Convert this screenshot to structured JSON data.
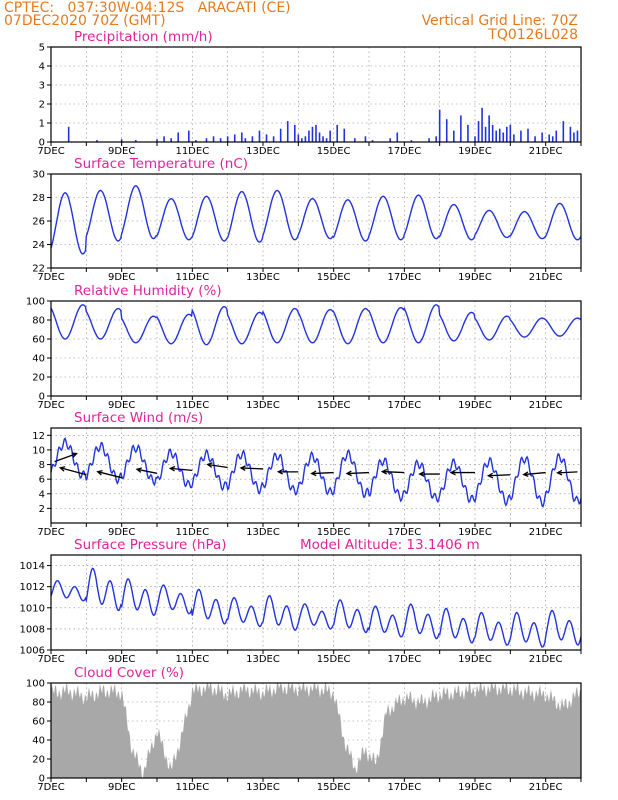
{
  "header": {
    "line1_left": "CPTEC:   037:30W-04:12S   ARACATI (CE)",
    "line2_left": "07DEC2020 70Z (GMT)",
    "line1_right": "Vertical Grid Line: 70Z",
    "line2_right": "TQ0126L028"
  },
  "x_labels": [
    "7DEC",
    "9DEC",
    "11DEC",
    "13DEC",
    "15DEC",
    "17DEC",
    "19DEC",
    "21DEC"
  ],
  "colors": {
    "title": "#e0249a",
    "header": "#e87a1e",
    "line": "#2233dd",
    "bars": "#2233dd",
    "cloud": "#a8a8a8"
  },
  "chart_data": [
    {
      "type": "bar",
      "title": "Precipitation (mm/h)",
      "ylim": [
        0,
        5
      ],
      "yticks": [
        0,
        1,
        2,
        3,
        4,
        5
      ],
      "xlim_days": [
        0,
        15
      ],
      "series": [
        {
          "x": [
            0.5,
            1.3,
            2.0,
            2.4,
            3.0,
            3.2,
            3.4,
            3.6,
            3.9,
            4.1,
            4.4,
            4.6,
            4.8,
            5.0,
            5.2,
            5.4,
            5.5,
            5.7,
            5.9,
            6.1,
            6.3,
            6.5,
            6.7,
            6.9,
            7.0,
            7.1,
            7.2,
            7.3,
            7.4,
            7.5,
            7.6,
            7.7,
            7.8,
            7.9,
            8.1,
            8.3,
            8.6,
            8.9,
            9.1,
            9.6,
            9.8,
            10.2,
            10.7,
            10.9,
            11.0,
            11.2,
            11.4,
            11.6,
            11.8,
            12.0,
            12.1,
            12.2,
            12.3,
            12.4,
            12.5,
            12.6,
            12.7,
            12.8,
            12.9,
            13.0,
            13.1,
            13.3,
            13.5,
            13.7,
            13.9,
            14.1,
            14.2,
            14.3,
            14.5,
            14.7,
            14.8,
            14.9
          ],
          "values": [
            0.8,
            0.1,
            0.15,
            0.1,
            0.15,
            0.3,
            0.2,
            0.5,
            0.6,
            0.1,
            0.2,
            0.3,
            0.2,
            0.3,
            0.4,
            0.5,
            0.2,
            0.3,
            0.6,
            0.4,
            0.3,
            0.7,
            1.1,
            0.9,
            0.4,
            0.2,
            0.3,
            0.6,
            0.8,
            0.9,
            0.5,
            0.3,
            0.2,
            0.6,
            0.9,
            0.7,
            0.2,
            0.3,
            0.1,
            0.2,
            0.5,
            0.1,
            0.2,
            0.3,
            1.7,
            1.2,
            0.6,
            1.4,
            0.9,
            0.3,
            1.1,
            1.8,
            0.8,
            1.4,
            0.9,
            0.6,
            0.7,
            0.5,
            0.8,
            0.9,
            0.4,
            0.6,
            0.7,
            0.3,
            0.5,
            0.4,
            0.3,
            0.6,
            1.1,
            0.8,
            0.5,
            0.6
          ]
        }
      ]
    },
    {
      "type": "line",
      "title": "Surface Temperature (nC)",
      "ylim": [
        22,
        30
      ],
      "yticks": [
        22,
        24,
        26,
        28,
        30
      ],
      "series": [
        {
          "min": [
            23.2,
            24.3,
            24.5,
            24.4,
            24.3,
            24.2,
            24.4,
            24.5,
            24.3,
            24.4,
            24.5,
            24.4,
            24.6,
            24.5,
            24.4
          ],
          "max": [
            28.4,
            28.6,
            29.0,
            27.9,
            28.1,
            28.5,
            28.6,
            27.9,
            27.8,
            28.1,
            28.2,
            27.4,
            26.9,
            26.8,
            27.5
          ]
        }
      ]
    },
    {
      "type": "line",
      "title": "Relative Humidity (%)",
      "ylim": [
        0,
        100
      ],
      "yticks": [
        0,
        20,
        40,
        60,
        80,
        100
      ],
      "series": [
        {
          "min": [
            60,
            60,
            56,
            55,
            54,
            55,
            56,
            56,
            55,
            56,
            56,
            58,
            59,
            62,
            63
          ],
          "max": [
            96,
            92,
            84,
            86,
            94,
            88,
            92,
            91,
            92,
            93,
            96,
            88,
            84,
            82,
            82
          ]
        }
      ]
    },
    {
      "type": "line",
      "title": "Surface Wind (m/s)",
      "ylim": [
        0,
        13
      ],
      "yticks": [
        2,
        4,
        6,
        8,
        10,
        12
      ],
      "series": [
        {
          "min": [
            6.5,
            6.0,
            5.8,
            5.2,
            5.0,
            4.6,
            4.4,
            4.2,
            4.0,
            3.6,
            3.4,
            3.2,
            3.0,
            2.8,
            3.0
          ],
          "max": [
            11.0,
            10.5,
            10.3,
            9.6,
            9.4,
            9.4,
            9.2,
            9.1,
            9.4,
            8.5,
            8.1,
            8.2,
            8.4,
            8.8,
            9.0
          ]
        }
      ],
      "vectors": [
        {
          "x": 0.1,
          "y": 8.4,
          "dx": 22,
          "dy": -8
        },
        {
          "x": 1.0,
          "y": 6.6,
          "dx": -26,
          "dy": -7
        },
        {
          "x": 2.0,
          "y": 6.2,
          "dx": -24,
          "dy": -6
        },
        {
          "x": 3.0,
          "y": 6.8,
          "dx": -20,
          "dy": -4
        },
        {
          "x": 4.0,
          "y": 7.2,
          "dx": -22,
          "dy": -2
        },
        {
          "x": 5.0,
          "y": 7.6,
          "dx": -20,
          "dy": -3
        },
        {
          "x": 6.0,
          "y": 7.4,
          "dx": -22,
          "dy": -1
        },
        {
          "x": 7.0,
          "y": 7.0,
          "dx": -20,
          "dy": 0
        },
        {
          "x": 8.0,
          "y": 6.9,
          "dx": -22,
          "dy": 1
        },
        {
          "x": 9.0,
          "y": 6.9,
          "dx": -22,
          "dy": 1
        },
        {
          "x": 10.0,
          "y": 6.9,
          "dx": -22,
          "dy": -1
        },
        {
          "x": 11.0,
          "y": 6.7,
          "dx": -20,
          "dy": 0
        },
        {
          "x": 12.0,
          "y": 6.9,
          "dx": -24,
          "dy": 0
        },
        {
          "x": 13.0,
          "y": 6.6,
          "dx": -22,
          "dy": 1
        },
        {
          "x": 14.0,
          "y": 6.9,
          "dx": -22,
          "dy": 2
        },
        {
          "x": 14.9,
          "y": 7.0,
          "dx": -20,
          "dy": 1
        }
      ]
    },
    {
      "type": "line",
      "title": "Surface Pressure (hPa)",
      "subtitle": "Model Altitude: 13.1406 m",
      "ylim": [
        1006,
        1015
      ],
      "yticks": [
        1006,
        1008,
        1010,
        1012,
        1014
      ],
      "series": [
        {
          "min": [
            1010.5,
            1009.4,
            1009.0,
            1009.2,
            1008.2,
            1008.0,
            1007.6,
            1007.8,
            1007.4,
            1007.0,
            1006.8,
            1006.4,
            1006.2,
            1006.0,
            1006.2
          ],
          "max": [
            1012.6,
            1013.8,
            1012.8,
            1012.2,
            1011.8,
            1011.0,
            1011.2,
            1010.4,
            1010.8,
            1010.2,
            1010.4,
            1010.0,
            1009.6,
            1009.6,
            1009.8
          ]
        }
      ]
    },
    {
      "type": "area",
      "title": "Cloud Cover (%)",
      "ylim": [
        0,
        100
      ],
      "yticks": [
        0,
        20,
        40,
        60,
        80,
        100
      ],
      "series": [
        {
          "x": [
            0,
            0.5,
            1.0,
            1.5,
            2.0,
            2.3,
            2.6,
            3.0,
            3.4,
            3.7,
            4.0,
            4.5,
            5.0,
            5.5,
            6.0,
            6.5,
            7.0,
            7.5,
            8.0,
            8.3,
            8.6,
            8.9,
            9.2,
            9.5,
            10.0,
            10.5,
            11.0,
            11.5,
            12.0,
            12.5,
            13.0,
            13.5,
            14.0,
            14.5,
            15.0
          ],
          "values": [
            90,
            92,
            85,
            92,
            90,
            30,
            5,
            50,
            8,
            45,
            92,
            96,
            88,
            94,
            90,
            96,
            94,
            95,
            90,
            40,
            10,
            30,
            15,
            70,
            85,
            80,
            88,
            90,
            93,
            95,
            94,
            90,
            88,
            75,
            92
          ]
        }
      ]
    }
  ]
}
